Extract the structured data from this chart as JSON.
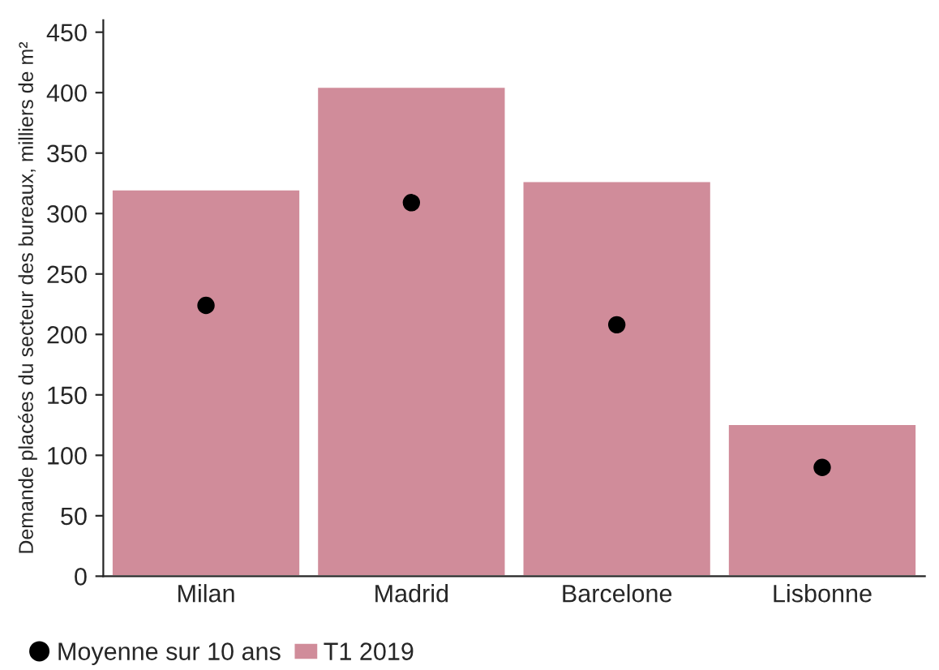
{
  "chart_data": {
    "type": "bar",
    "ylabel": "Demande placées du secteur des bureaux, milliers de m²",
    "categories": [
      "Milan",
      "Madrid",
      "Barcelone",
      "Lisbonne"
    ],
    "series": [
      {
        "name": "T1 2019",
        "color": "#d08c9a",
        "values": [
          320,
          405,
          327,
          126
        ]
      },
      {
        "name": "Moyenne sur 10 ans",
        "type": "scatter",
        "color": "#000000",
        "x": [
          "Milan",
          "Madrid",
          "Barcelone",
          "Lisbonne"
        ],
        "values": [
          224,
          309,
          208,
          90
        ]
      }
    ],
    "ylim": [
      0,
      460
    ],
    "yticks": [
      0,
      50,
      100,
      150,
      200,
      250,
      300,
      350,
      400,
      450
    ],
    "grid": false,
    "legend": "bottom",
    "marker": "circle"
  }
}
